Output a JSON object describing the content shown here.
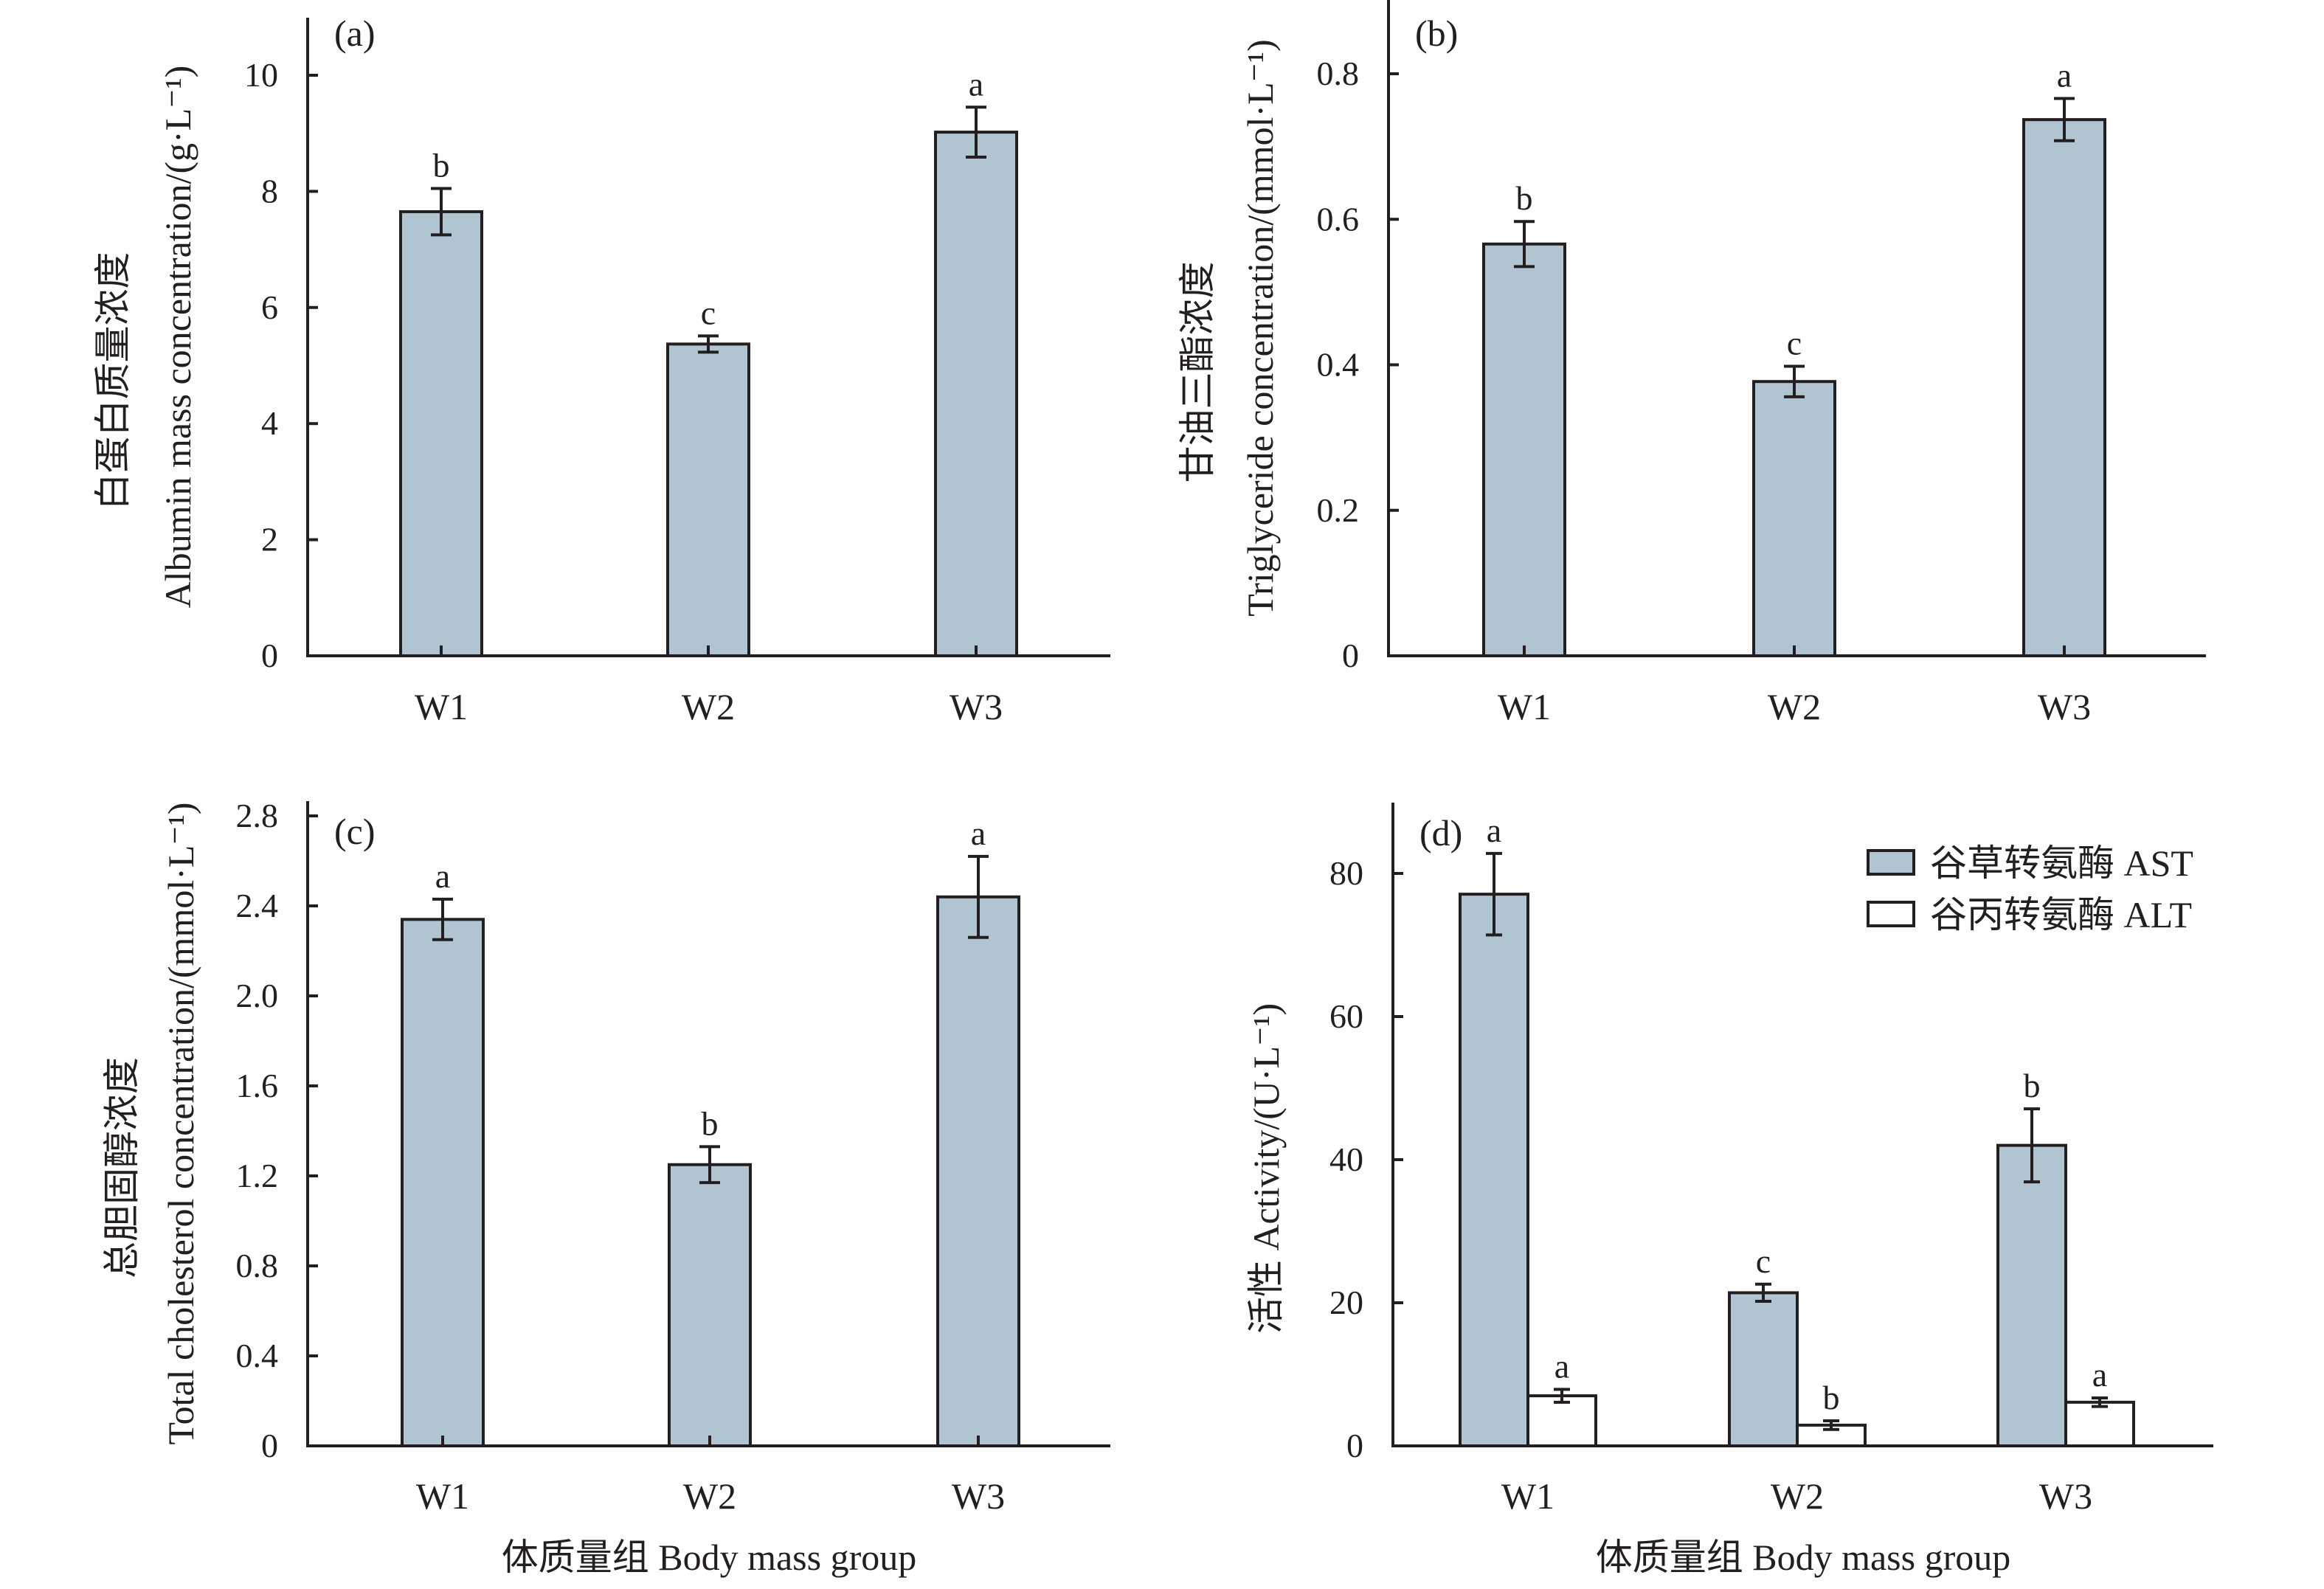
{
  "figure": {
    "shared_xlabel": "体质量组 Body mass group",
    "colors": {
      "bar_fill": "#b0c4d2",
      "bar_alt_fill": "#ffffff",
      "stroke": "#231f20"
    }
  },
  "chart_data": [
    {
      "id": "a",
      "type": "bar",
      "panel_label": "(a)",
      "ylabel_cn": "白蛋白质量浓度",
      "ylabel_en": "Albumin mass concentration/(g·L⁻¹)",
      "xlabel": "",
      "categories": [
        "W1",
        "W2",
        "W3"
      ],
      "ylim": [
        0,
        11
      ],
      "yticks": [
        0,
        2,
        4,
        6,
        8,
        10
      ],
      "ytick_labels": [
        "0",
        "2",
        "4",
        "6",
        "8",
        "10"
      ],
      "series": [
        {
          "name": "Albumin",
          "values": [
            7.65,
            5.37,
            9.02
          ],
          "errors": [
            0.4,
            0.14,
            0.43
          ],
          "significance": [
            "b",
            "c",
            "a"
          ],
          "fill": "#b0c4d2"
        }
      ],
      "legend": null,
      "grid": false
    },
    {
      "id": "b",
      "type": "bar",
      "panel_label": "(b)",
      "ylabel_cn": "甘油三酯浓度",
      "ylabel_en": "Triglyceride concentration/(mmol·L⁻¹)",
      "xlabel": "",
      "categories": [
        "W1",
        "W2",
        "W3"
      ],
      "ylim": [
        0,
        0.9
      ],
      "yticks": [
        0,
        0.2,
        0.4,
        0.6,
        0.8
      ],
      "ytick_labels": [
        "0",
        "0.2",
        "0.4",
        "0.6",
        "0.8"
      ],
      "series": [
        {
          "name": "Triglyceride",
          "values": [
            0.566,
            0.377,
            0.737
          ],
          "errors": [
            0.031,
            0.021,
            0.029
          ],
          "significance": [
            "b",
            "c",
            "a"
          ],
          "fill": "#b0c4d2"
        }
      ],
      "legend": null,
      "grid": false
    },
    {
      "id": "c",
      "type": "bar",
      "panel_label": "(c)",
      "ylabel_cn": "总胆固醇浓度",
      "ylabel_en": "Total cholesterol concentration/(mmol·L⁻¹)",
      "xlabel": "体质量组 Body mass group",
      "categories": [
        "W1",
        "W2",
        "W3"
      ],
      "ylim": [
        0,
        2.9
      ],
      "yticks": [
        0,
        0.4,
        0.8,
        1.2,
        1.6,
        2.0,
        2.4,
        2.8
      ],
      "ytick_labels": [
        "0",
        "0.4",
        "0.8",
        "1.2",
        "1.6",
        "2.0",
        "2.4",
        "2.8"
      ],
      "series": [
        {
          "name": "Total cholesterol",
          "values": [
            2.34,
            1.25,
            2.44
          ],
          "errors": [
            0.09,
            0.08,
            0.18
          ],
          "significance": [
            "a",
            "b",
            "a"
          ],
          "fill": "#b0c4d2"
        }
      ],
      "legend": null,
      "grid": false
    },
    {
      "id": "d",
      "type": "bar",
      "panel_label": "(d)",
      "ylabel_cn": "活性",
      "ylabel_en": "Activity/(U·L⁻¹)",
      "xlabel": "体质量组 Body mass group",
      "categories": [
        "W1",
        "W2",
        "W3"
      ],
      "ylim": [
        0,
        90
      ],
      "yticks": [
        0,
        20,
        40,
        60,
        80
      ],
      "ytick_labels": [
        "0",
        "20",
        "40",
        "60",
        "80"
      ],
      "series": [
        {
          "name": "谷草转氨酶 AST",
          "values": [
            77.1,
            21.4,
            42.0
          ],
          "errors": [
            5.7,
            1.2,
            5.1
          ],
          "significance": [
            "a",
            "c",
            "b"
          ],
          "fill": "#b0c4d2"
        },
        {
          "name": "谷丙转氨酶 ALT",
          "values": [
            7.0,
            2.9,
            6.1
          ],
          "errors": [
            0.9,
            0.6,
            0.6
          ],
          "significance": [
            "a",
            "b",
            "a"
          ],
          "fill": "#ffffff"
        }
      ],
      "legend": "top-right",
      "grid": false
    }
  ]
}
